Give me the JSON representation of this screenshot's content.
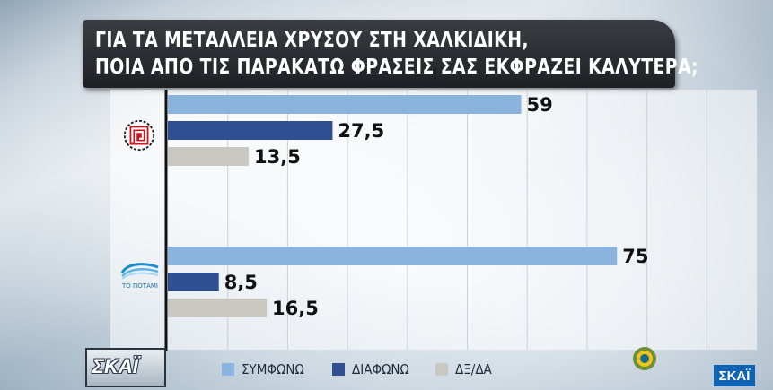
{
  "title": {
    "line1": "ΓΙΑ ΤΑ ΜΕΤΑΛΛΕΙΑ ΧΡΥΣΟΥ ΣΤΗ ΧΑΛΚΙΔΙΚΗ,",
    "line2": "ΠΟΙΑ ΑΠΟ ΤΙΣ ΠΑΡΑΚΑΤΩ ΦΡΑΣΕΙΣ ΣΑΣ ΕΚΦΡΑΖΕΙ ΚΑΛΥΤΕΡΑ;"
  },
  "chart_data": {
    "type": "bar",
    "orientation": "horizontal",
    "categories": [
      "party-1",
      "party-2"
    ],
    "category_icons": [
      "meander-logo",
      "river-logo"
    ],
    "category_icon_text": [
      "",
      "ΤΟ ΠΟΤΑΜΙ"
    ],
    "series": [
      {
        "name": "ΣΥΜΦΩΝΩ",
        "color": "#8ab4de",
        "values": [
          59,
          75
        ],
        "labels": [
          "59",
          "75"
        ]
      },
      {
        "name": "ΔΙΑΦΩΝΩ",
        "color": "#2f4f93",
        "values": [
          27.5,
          8.5
        ],
        "labels": [
          "27,5",
          "8,5"
        ]
      },
      {
        "name": "ΔΞ/ΔΑ",
        "color": "#c9c9c2",
        "values": [
          13.5,
          16.5
        ],
        "labels": [
          "13,5",
          "16,5"
        ]
      }
    ],
    "xlim": [
      0,
      100
    ],
    "grid": true,
    "legend_position": "bottom"
  },
  "branding": {
    "channel_logo": "ΣΚΑΪ",
    "channel_corner": "ΣΚΑΪ",
    "sponsor_logo": "makedonias-logo"
  }
}
